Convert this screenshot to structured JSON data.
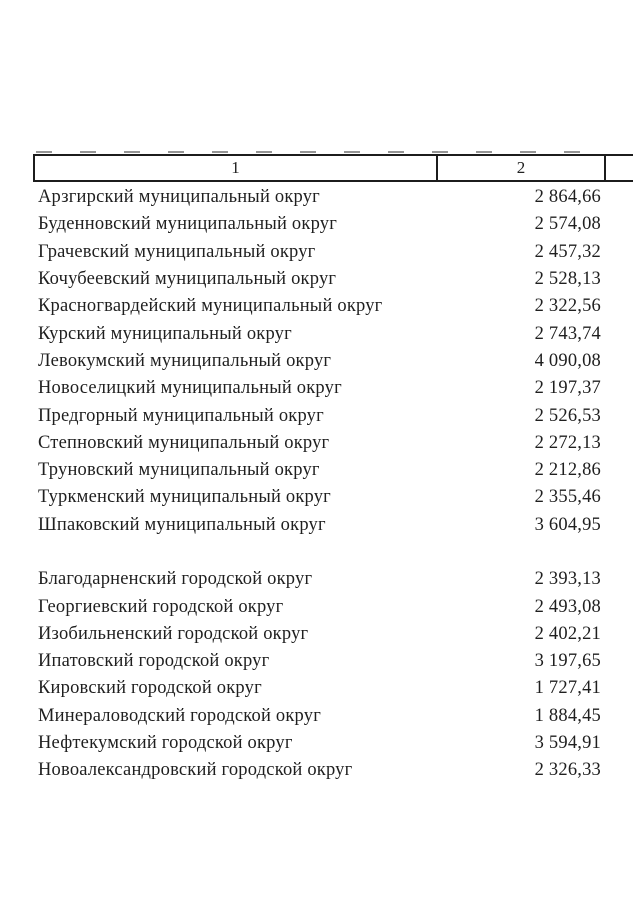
{
  "page": {
    "background_color": "#ffffff",
    "text_color": "#1f1f1f"
  },
  "table": {
    "header": {
      "col1_label": "1",
      "col2_label": "2"
    },
    "municipal_rows": [
      {
        "name": "Арзгирский муниципальный округ",
        "value": "2 864,66"
      },
      {
        "name": "Буденновский муниципальный округ",
        "value": "2 574,08"
      },
      {
        "name": "Грачевский муниципальный округ",
        "value": "2 457,32"
      },
      {
        "name": "Кочубеевский муниципальный округ",
        "value": "2 528,13"
      },
      {
        "name": "Красногвардейский муниципальный округ",
        "value": "2 322,56"
      },
      {
        "name": "Курский муниципальный округ",
        "value": "2 743,74"
      },
      {
        "name": "Левокумский муниципальный округ",
        "value": "4 090,08"
      },
      {
        "name": "Новоселицкий муниципальный округ",
        "value": "2 197,37"
      },
      {
        "name": "Предгорный муниципальный округ",
        "value": "2 526,53"
      },
      {
        "name": "Степновский муниципальный округ",
        "value": "2 272,13"
      },
      {
        "name": "Труновский муниципальный округ",
        "value": "2 212,86"
      },
      {
        "name": "Туркменский муниципальный округ",
        "value": "2 355,46"
      },
      {
        "name": "Шпаковский муниципальный округ",
        "value": "3 604,95"
      }
    ],
    "city_rows": [
      {
        "name": "Благодарненский городской округ",
        "value": "2 393,13"
      },
      {
        "name": "Георгиевский городской округ",
        "value": "2 493,08"
      },
      {
        "name": "Изобильненский городской округ",
        "value": "2 402,21"
      },
      {
        "name": "Ипатовский городской округ",
        "value": "3 197,65"
      },
      {
        "name": "Кировский городской округ",
        "value": "1 727,41"
      },
      {
        "name": "Минераловодский городской округ",
        "value": "1 884,45"
      },
      {
        "name": "Нефтекумский городской округ",
        "value": "3 594,91"
      },
      {
        "name": "Новоалександровский городской округ",
        "value": "2 326,33"
      }
    ]
  }
}
